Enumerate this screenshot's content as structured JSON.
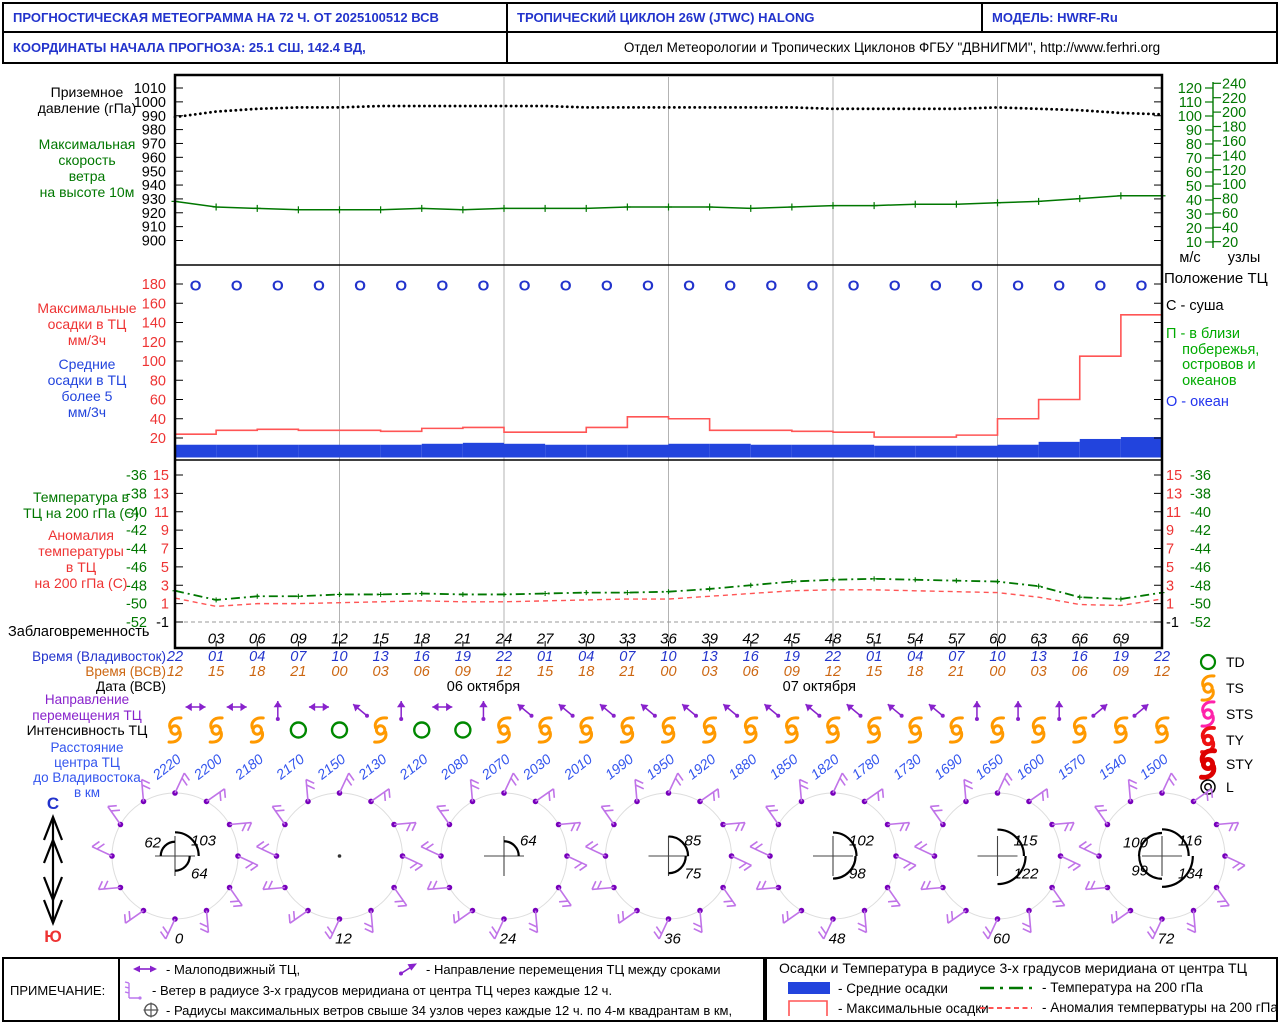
{
  "header": {
    "title_left": "ПРОГНОСТИЧЕСКАЯ МЕТЕОГРАММА НА 72 Ч. ОТ 2025100512 ВСВ",
    "title_center": "ТРОПИЧЕСКИЙ ЦИКЛОН  26W (JTWC)  HALONG",
    "title_right": "МОДЕЛЬ:   HWRF-Ru",
    "coords": "КООРДИНАТЫ НАЧАЛА ПРОГНОЗА: 25.1  СШ,   142.4  ВД,",
    "org": "Отдел Метеорологии и Тропических Циклонов ФГБУ \"ДВНИГМИ\",  http://www.ferhri.org"
  },
  "left_labels": {
    "pressure": "Приземное\nдавление (гПа)",
    "wind": "Максимальная\nскорость\nветра\nна высоте 10м",
    "precip_max": "Максимальные\nосадки в ТЦ\nмм/3ч",
    "precip_mean": "Средние\nосадки в ТЦ\nболее 5\nмм/3ч",
    "temp": "Температура в\nТЦ на 200 гПа (С)",
    "anomaly": "Аномалия\nтемпературы\nв ТЦ\nна 200 гПа (С)",
    "lead": "Заблаговременность",
    "time_vlad": "Время (Владивосток)",
    "time_utc": "Время (ВСВ)",
    "date": "Дата (ВСВ)",
    "movement": "Направление\nперемещения ТЦ",
    "intensity": "Интенсивность ТЦ",
    "distance": "Расстояние\nцентра ТЦ\nдо Владивостока\nв км"
  },
  "axes": {
    "pressure_ticks": [
      "1010",
      "1000",
      "990",
      "980",
      "970",
      "960",
      "950",
      "940",
      "930",
      "920",
      "910",
      "900"
    ],
    "ms_ticks": [
      "120",
      "110",
      "100",
      "90",
      "80",
      "70",
      "60",
      "50",
      "40",
      "30",
      "20",
      "10"
    ],
    "knots_ticks": [
      "240",
      "220",
      "200",
      "180",
      "160",
      "140",
      "120",
      "100",
      "80",
      "60",
      "40",
      "20"
    ],
    "precip_ticks": [
      "180",
      "160",
      "140",
      "120",
      "100",
      "80",
      "60",
      "40",
      "20"
    ],
    "temp_ticks": [
      "-36",
      "-38",
      "-40",
      "-42",
      "-44",
      "-46",
      "-48",
      "-50",
      "-52"
    ],
    "anomaly_ticks": [
      "15",
      "13",
      "11",
      "9",
      "7",
      "5",
      "3",
      "1",
      "-1"
    ],
    "unit_ms": "м/с",
    "unit_knots": "узлы"
  },
  "position_legend": {
    "title": "Положение ТЦ",
    "items": [
      {
        "key": "С",
        "text": "С - суша",
        "color": "#ee3333"
      },
      {
        "key": "П",
        "text": "П - в близи\n    побережья,\n    островов и\n    океанов",
        "color": "#00aa00"
      },
      {
        "key": "О",
        "text": "О - океан",
        "color": "#2233ee"
      }
    ]
  },
  "chart_data": {
    "type": "line",
    "title": "Прогностическая метеограмма на 72 ч. — ТЦ 26W HALONG",
    "x_hours": [
      0,
      3,
      6,
      9,
      12,
      15,
      18,
      21,
      24,
      27,
      30,
      33,
      36,
      39,
      42,
      45,
      48,
      51,
      54,
      57,
      60,
      63,
      66,
      69,
      72
    ],
    "axis_ranges": {
      "pressure_hpa": [
        900,
        1010
      ],
      "wind_ms": [
        10,
        120
      ],
      "wind_knots": [
        20,
        240
      ],
      "precip_mm3h": [
        0,
        180
      ],
      "temp200_c": [
        -52,
        -36
      ],
      "anomaly_c": [
        -1,
        15
      ]
    },
    "series": [
      {
        "name": "Приземное давление (гПа)",
        "style": "dotted",
        "color": "#000000",
        "values": [
          989,
          993,
          995,
          996,
          996,
          997,
          997,
          997,
          997,
          997,
          996,
          996,
          996,
          996,
          996,
          996,
          995,
          995,
          995,
          995,
          996,
          995,
          994,
          992,
          991
        ]
      },
      {
        "name": "Максимальная скорость ветра на высоте 10 м (м/с)",
        "style": "solid-plus",
        "color": "#007700",
        "values": [
          39,
          35,
          34,
          33,
          33,
          33,
          34,
          33,
          34,
          34,
          34,
          35,
          35,
          35,
          34,
          35,
          36,
          36,
          37,
          37,
          38,
          39,
          41,
          43,
          43
        ]
      },
      {
        "name": "Максимальные осадки в ТЦ (мм/3ч)",
        "style": "step",
        "color": "#ff5555",
        "values": [
          24,
          28,
          29,
          28,
          28,
          27,
          30,
          31,
          26,
          26,
          31,
          42,
          40,
          28,
          28,
          27,
          26,
          21,
          21,
          23,
          40,
          60,
          105,
          148
        ]
      },
      {
        "name": "Средние осадки в ТЦ (мм/3ч)",
        "style": "bars",
        "color": "#2244dd",
        "values": [
          13,
          13,
          13,
          13,
          13,
          13,
          14,
          15,
          14,
          13,
          13,
          13,
          14,
          14,
          13,
          13,
          13,
          12,
          12,
          12,
          13,
          16,
          19,
          21
        ]
      },
      {
        "name": "Температура в ТЦ на 200 гПа (С)",
        "style": "dashdot-plus",
        "color": "#007700",
        "values": [
          -48.6,
          -49.6,
          -49.2,
          -49.2,
          -49.0,
          -49.0,
          -48.9,
          -49.0,
          -49.0,
          -48.9,
          -48.8,
          -48.8,
          -48.7,
          -48.4,
          -48.0,
          -47.6,
          -47.4,
          -47.3,
          -47.4,
          -47.5,
          -47.6,
          -48.1,
          -49.3,
          -49.5,
          -48.8
        ]
      },
      {
        "name": "Аномалия температуры в ТЦ на 200 гПа (С)",
        "style": "dashed",
        "color": "#ff5555",
        "values": [
          1.6,
          0.7,
          1.0,
          1.0,
          1.1,
          1.2,
          1.3,
          1.2,
          1.2,
          1.3,
          1.4,
          1.5,
          1.5,
          1.8,
          2.1,
          2.4,
          2.5,
          2.5,
          2.4,
          2.3,
          2.2,
          1.7,
          0.9,
          0.8,
          1.5
        ]
      }
    ],
    "position_row": [
      "О",
      "О",
      "О",
      "О",
      "О",
      "О",
      "О",
      "О",
      "О",
      "О",
      "О",
      "О",
      "О",
      "О",
      "О",
      "О",
      "О",
      "О",
      "О",
      "О",
      "О",
      "О",
      "О",
      "О"
    ]
  },
  "timeline": {
    "lead_times": [
      "03",
      "06",
      "09",
      "12",
      "15",
      "18",
      "21",
      "24",
      "27",
      "30",
      "33",
      "36",
      "39",
      "42",
      "45",
      "48",
      "51",
      "54",
      "57",
      "60",
      "63",
      "66",
      "69"
    ],
    "vlad_times": [
      "22",
      "01",
      "04",
      "07",
      "10",
      "13",
      "16",
      "19",
      "22",
      "01",
      "04",
      "07",
      "10",
      "13",
      "16",
      "19",
      "22",
      "01",
      "04",
      "07",
      "10",
      "13",
      "16",
      "19",
      "22"
    ],
    "utc_times": [
      "12",
      "15",
      "18",
      "21",
      "00",
      "03",
      "06",
      "09",
      "12",
      "15",
      "18",
      "21",
      "00",
      "03",
      "06",
      "09",
      "12",
      "15",
      "18",
      "21",
      "00",
      "03",
      "06",
      "09",
      "12"
    ],
    "dates": [
      {
        "label": "06 октября",
        "hour": 22.5
      },
      {
        "label": "07 октября",
        "hour": 47
      }
    ]
  },
  "movement_arrows": [
    "little-move",
    "little-move",
    "up",
    "little-move",
    "up-left",
    "up",
    "little-move",
    "up",
    "up-left",
    "up-left",
    "up-left",
    "up-left",
    "up-left",
    "up-left",
    "up-left",
    "up-left",
    "up-left",
    "up-left",
    "up-left",
    "up",
    "up",
    "up",
    "up-right",
    "up-right"
  ],
  "intensity_row": [
    "TS",
    "TS",
    "TS",
    "TD",
    "TD",
    "TS",
    "TD",
    "TD",
    "TS",
    "TS",
    "TS",
    "TS",
    "TS",
    "TS",
    "TS",
    "TS",
    "TS",
    "TS",
    "TS",
    "TS",
    "TS",
    "TS",
    "TS",
    "TS",
    "TS"
  ],
  "distances_km": [
    "2220",
    "2200",
    "2180",
    "2170",
    "2150",
    "2130",
    "2120",
    "2080",
    "2070",
    "2030",
    "2010",
    "1990",
    "1950",
    "1920",
    "1880",
    "1850",
    "1820",
    "1780",
    "1730",
    "1690",
    "1650",
    "1600",
    "1570",
    "1540",
    "1500"
  ],
  "intensity_legend": [
    {
      "symbol": "TD",
      "label": "TD",
      "color": "#008800"
    },
    {
      "symbol": "TS",
      "label": "TS",
      "color": "#ff9900"
    },
    {
      "symbol": "STS",
      "label": "STS",
      "color": "#ff22aa"
    },
    {
      "symbol": "TY",
      "label": "TY",
      "color": "#ee1111"
    },
    {
      "symbol": "STY",
      "label": "STY",
      "color": "#dd0000"
    },
    {
      "symbol": "L",
      "label": "L",
      "color": "#000000"
    }
  ],
  "wind_roses": [
    {
      "hour_label": "0",
      "quadrant_radii": {
        "nw": 62,
        "ne": 103,
        "se": 64
      }
    },
    {
      "hour_label": "12",
      "quadrant_radii": {}
    },
    {
      "hour_label": "24",
      "quadrant_radii": {
        "ne": 64
      }
    },
    {
      "hour_label": "36",
      "quadrant_radii": {
        "ne": 85,
        "se": 75
      }
    },
    {
      "hour_label": "48",
      "quadrant_radii": {
        "ne": 102,
        "se": 98
      }
    },
    {
      "hour_label": "60",
      "quadrant_radii": {
        "ne": 115,
        "se": 122
      }
    },
    {
      "hour_label": "72",
      "quadrant_radii": {
        "nw": 100,
        "ne": 116,
        "sw": 99,
        "se": 134
      }
    }
  ],
  "compass": {
    "north": "С",
    "south": "Ю"
  },
  "notes": {
    "label": "ПРИМЕЧАНИЕ:",
    "items": [
      {
        "icon": "double-arrow-icon",
        "text": "- Малоподвижный ТЦ,"
      },
      {
        "icon": "direction-arrow-icon",
        "text": "- Направление перемещения ТЦ между сроками"
      },
      {
        "icon": "wind-barb-icon",
        "text": "- Ветер в радиусе 3-х градусов меридиана от центра ТЦ через каждые 12 ч."
      },
      {
        "icon": "max-wind-radii-icon",
        "text": "- Радиусы максимальных ветров свыше 34 узлов через каждые 12 ч. по 4-м квадрантам в км,"
      }
    ]
  },
  "precip_temp_legend": {
    "title": "Осадки и Температура в радиусе 3-х градусов меридиана от центра ТЦ",
    "items": [
      {
        "swatch": "mean-precip",
        "text": "- Средние осадки"
      },
      {
        "swatch": "max-precip",
        "text": "- Максимальные осадки"
      },
      {
        "swatch": "temp200",
        "text": "- Температура на 200 гПа"
      },
      {
        "swatch": "anomaly200",
        "text": "- Аномалия темперватуры на 200 гПа"
      }
    ]
  },
  "colors": {
    "header_blue": "#2233cc",
    "green": "#007700",
    "red_label": "#ee3333",
    "line_red": "#ff5555",
    "blue": "#2233cc",
    "bar_blue": "#2244dd",
    "orange": "#cc6611",
    "ts_orange": "#ff9900",
    "td_green": "#008800",
    "sts_pink": "#ff22aa",
    "ty_red": "#ee1111",
    "sty_red": "#dd0000",
    "purple": "#8822cc",
    "barb_purple": "#c073e8",
    "barb_dot": "#7700bb",
    "distance_blue": "#3355ee",
    "grid_gray": "#b3b3b3"
  }
}
